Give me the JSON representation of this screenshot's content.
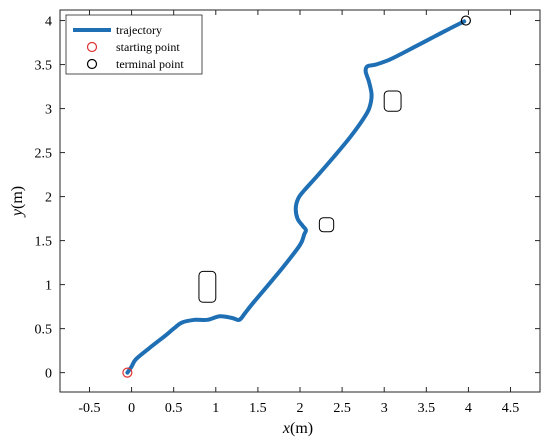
{
  "chart_data": {
    "type": "line",
    "xlim": [
      -0.85,
      4.85
    ],
    "ylim": [
      -0.22,
      4.12
    ],
    "xticks": [
      "-0.5",
      "0",
      "0.5",
      "1",
      "1.5",
      "2",
      "2.5",
      "3",
      "3.5",
      "4",
      "4.5"
    ],
    "yticks": [
      "0",
      "0.5",
      "1",
      "1.5",
      "2",
      "2.5",
      "3",
      "3.5",
      "4"
    ],
    "xlabel": {
      "var": "x",
      "unit": "(m)"
    },
    "ylabel": {
      "var": "y",
      "unit": "(m)"
    },
    "grid": false,
    "legend": {
      "position": "top-left",
      "entries": [
        {
          "label": "trajectory",
          "kind": "line",
          "color": "#1f6fb4"
        },
        {
          "label": "starting point",
          "kind": "circle",
          "color": "#e03030"
        },
        {
          "label": "terminal point",
          "kind": "circle",
          "color": "#000000"
        }
      ]
    },
    "series": [
      {
        "name": "trajectory",
        "color": "#1f6fb4",
        "x": [
          -0.05,
          0.0,
          0.05,
          0.2,
          0.4,
          0.5,
          0.6,
          0.75,
          0.9,
          1.05,
          1.2,
          1.28,
          1.35,
          1.45,
          1.6,
          1.8,
          2.0,
          2.05,
          2.07,
          2.03,
          1.97,
          1.95,
          1.98,
          2.05,
          2.2,
          2.4,
          2.6,
          2.75,
          2.82,
          2.85,
          2.82,
          2.78,
          2.8,
          2.9,
          3.05,
          3.2,
          3.4,
          3.6,
          3.8,
          3.95
        ],
        "y": [
          0.0,
          0.07,
          0.15,
          0.27,
          0.42,
          0.5,
          0.57,
          0.6,
          0.6,
          0.64,
          0.62,
          0.6,
          0.68,
          0.8,
          0.97,
          1.2,
          1.45,
          1.57,
          1.62,
          1.67,
          1.75,
          1.87,
          1.98,
          2.07,
          2.23,
          2.45,
          2.68,
          2.88,
          3.0,
          3.15,
          3.3,
          3.42,
          3.48,
          3.5,
          3.55,
          3.62,
          3.72,
          3.82,
          3.92,
          3.99
        ]
      }
    ],
    "markers": [
      {
        "name": "starting point",
        "x": -0.05,
        "y": 0.0,
        "color": "#e03030"
      },
      {
        "name": "terminal point",
        "x": 3.97,
        "y": 4.0,
        "color": "#000000"
      }
    ],
    "obstacles": [
      {
        "x": [
          0.8,
          1.0
        ],
        "y": [
          0.8,
          1.15
        ]
      },
      {
        "x": [
          2.23,
          2.4
        ],
        "y": [
          1.6,
          1.76
        ]
      },
      {
        "x": [
          3.0,
          3.2
        ],
        "y": [
          2.97,
          3.2
        ]
      }
    ]
  }
}
